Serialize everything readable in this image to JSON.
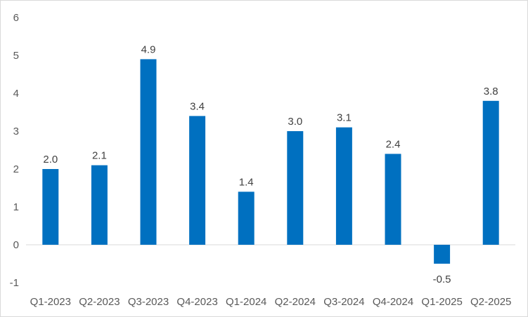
{
  "chart_data": {
    "type": "bar",
    "categories": [
      "Q1-2023",
      "Q2-2023",
      "Q3-2023",
      "Q4-2023",
      "Q1-2024",
      "Q2-2024",
      "Q3-2024",
      "Q4-2024",
      "Q1-2025",
      "Q2-2025"
    ],
    "values": [
      2.0,
      2.1,
      4.9,
      3.4,
      1.4,
      3.0,
      3.1,
      2.4,
      -0.5,
      3.8
    ],
    "data_labels": [
      "2.0",
      "2.1",
      "4.9",
      "3.4",
      "1.4",
      "3.0",
      "3.1",
      "2.4",
      "-0.5",
      "3.8"
    ],
    "yticks": [
      "-1",
      "0",
      "1",
      "2",
      "3",
      "4",
      "5",
      "6"
    ],
    "title": "",
    "xlabel": "",
    "ylabel": "",
    "ylim": [
      -1,
      6
    ],
    "grid": false,
    "legend": "none",
    "bar_color": "#0070c0",
    "zero_line_color": "#d9d9d9"
  }
}
